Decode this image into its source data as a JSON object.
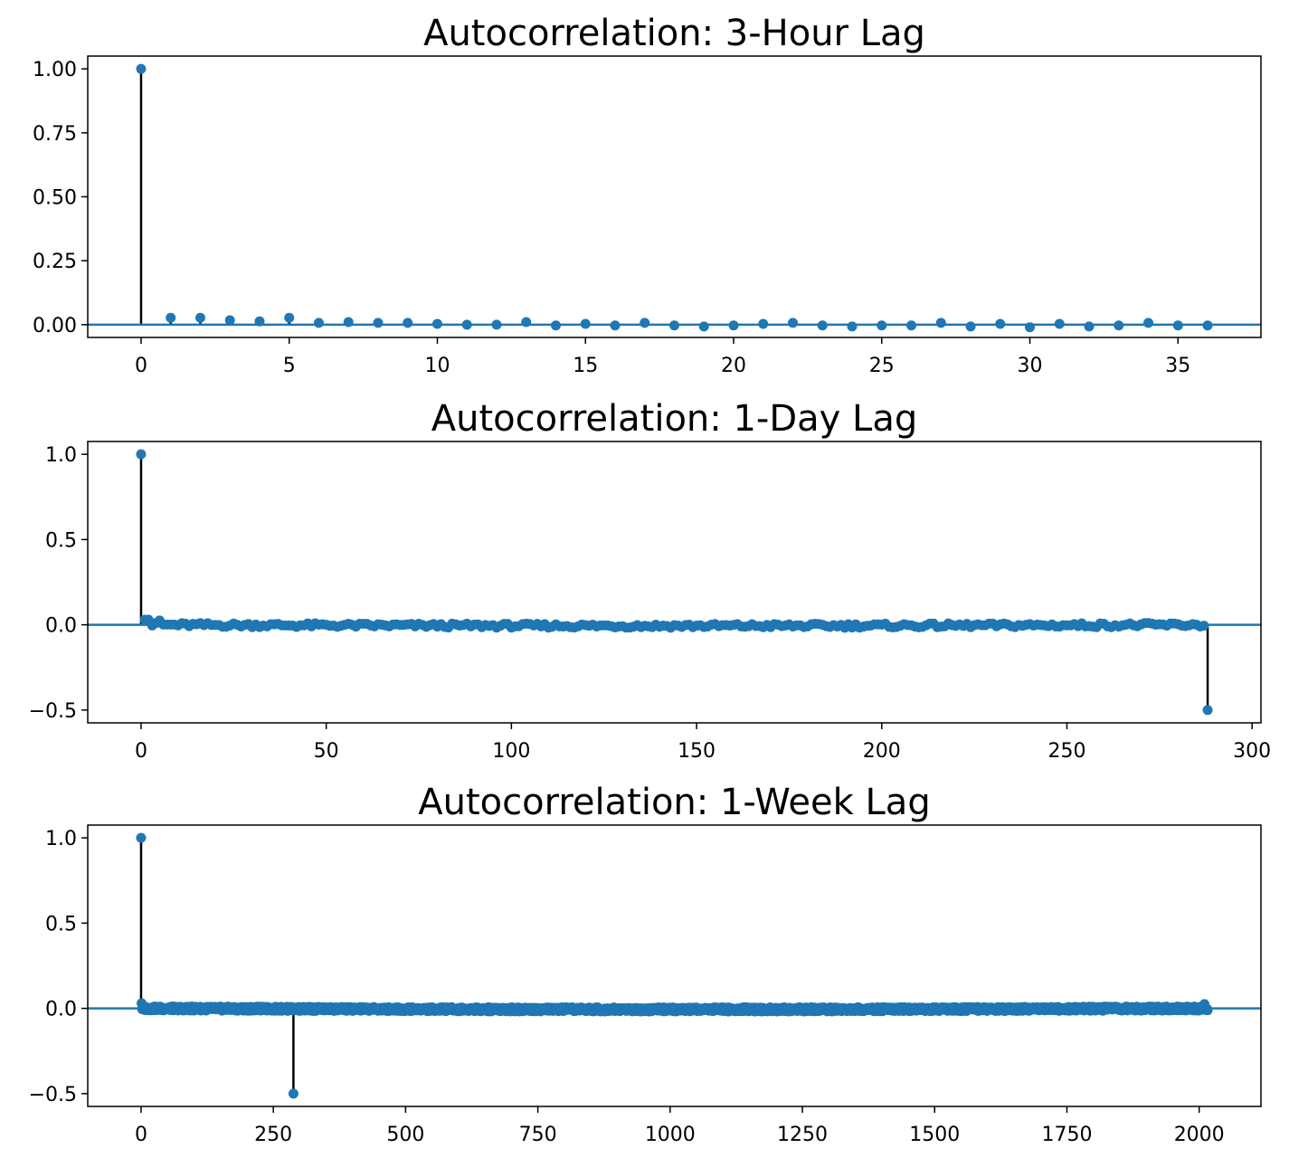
{
  "chart_data": [
    {
      "type": "stem",
      "title": "Autocorrelation: 3-Hour Lag",
      "xlabel": "",
      "ylabel": "",
      "xlim": [
        -1.8,
        37.8
      ],
      "ylim": [
        -0.05,
        1.05
      ],
      "xticks": [
        0,
        5,
        10,
        15,
        20,
        25,
        30,
        35
      ],
      "xtick_labels": [
        "0",
        "5",
        "10",
        "15",
        "20",
        "25",
        "30",
        "35"
      ],
      "yticks": [
        0.0,
        0.25,
        0.5,
        0.75,
        1.0
      ],
      "ytick_labels": [
        "0.00",
        "0.25",
        "0.50",
        "0.75",
        "1.00"
      ],
      "grid": false,
      "lags": [
        0,
        1,
        2,
        3,
        4,
        5,
        6,
        7,
        8,
        9,
        10,
        11,
        12,
        13,
        14,
        15,
        16,
        17,
        18,
        19,
        20,
        21,
        22,
        23,
        24,
        25,
        26,
        27,
        28,
        29,
        30,
        31,
        32,
        33,
        34,
        35,
        36
      ],
      "values": [
        1.0,
        0.027,
        0.027,
        0.017,
        0.013,
        0.027,
        0.007,
        0.01,
        0.007,
        0.007,
        0.003,
        0.0,
        0.0,
        0.01,
        -0.003,
        0.003,
        -0.003,
        0.007,
        -0.003,
        -0.007,
        -0.003,
        0.003,
        0.007,
        -0.003,
        -0.007,
        -0.003,
        -0.003,
        0.007,
        -0.007,
        0.003,
        -0.01,
        0.003,
        -0.007,
        -0.003,
        0.007,
        -0.003,
        -0.003
      ]
    },
    {
      "type": "stem",
      "title": "Autocorrelation: 1-Day Lag",
      "xlabel": "",
      "ylabel": "",
      "xlim": [
        -14.4,
        302.4
      ],
      "ylim": [
        -0.575,
        1.075
      ],
      "xticks": [
        0,
        50,
        100,
        150,
        200,
        250,
        300
      ],
      "xtick_labels": [
        "0",
        "50",
        "100",
        "150",
        "200",
        "250",
        "300"
      ],
      "yticks": [
        -0.5,
        0.0,
        0.5,
        1.0
      ],
      "ytick_labels": [
        "−0.5",
        "0.0",
        "0.5",
        "1.0"
      ],
      "grid": false,
      "max_lag": 288,
      "highlighted_points": [
        {
          "lag": 0,
          "value": 1.0
        },
        {
          "lag": 1,
          "value": 0.03
        },
        {
          "lag": 2,
          "value": 0.03
        },
        {
          "lag": 5,
          "value": 0.025
        },
        {
          "lag": 288,
          "value": -0.5
        }
      ],
      "baseline_noise_amplitude": 0.012
    },
    {
      "type": "stem",
      "title": "Autocorrelation: 1-Week Lag",
      "xlabel": "",
      "ylabel": "",
      "xlim": [
        -100.8,
        2116.8
      ],
      "ylim": [
        -0.575,
        1.075
      ],
      "xticks": [
        0,
        250,
        500,
        750,
        1000,
        1250,
        1500,
        1750,
        2000
      ],
      "xtick_labels": [
        "0",
        "250",
        "500",
        "750",
        "1000",
        "1250",
        "1500",
        "1750",
        "2000"
      ],
      "yticks": [
        -0.5,
        0.0,
        0.5,
        1.0
      ],
      "ytick_labels": [
        "−0.5",
        "0.0",
        "0.5",
        "1.0"
      ],
      "grid": false,
      "max_lag": 2016,
      "highlighted_points": [
        {
          "lag": 0,
          "value": 1.0
        },
        {
          "lag": 1,
          "value": 0.03
        },
        {
          "lag": 288,
          "value": -0.5
        },
        {
          "lag": 2010,
          "value": 0.025
        }
      ],
      "baseline_noise_amplitude": 0.012
    }
  ],
  "colors": {
    "marker": "#1f77b4",
    "stem": "#000000",
    "baseline": "#1f77b4",
    "axes": "#000000"
  }
}
